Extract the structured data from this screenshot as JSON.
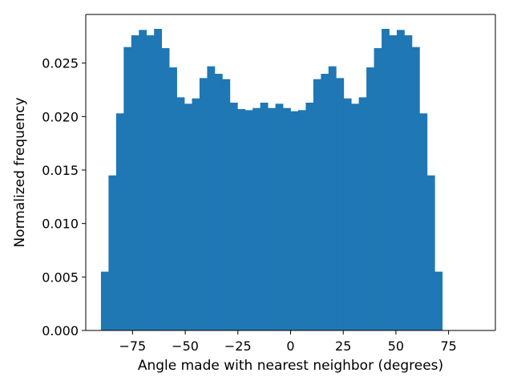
{
  "chart_data": {
    "type": "bar",
    "subtype": "histogram",
    "title": "",
    "xlabel": "Angle made with nearest neighbor (degrees)",
    "ylabel": "Normalized frequency",
    "xlim": [
      -97.2,
      97.2
    ],
    "ylim": [
      0,
      0.02955
    ],
    "bin_width": 3.6,
    "x_ticks": [
      -75,
      -50,
      -25,
      0,
      25,
      50,
      75
    ],
    "x_tick_labels": [
      "−75",
      "−50",
      "−25",
      "0",
      "25",
      "50",
      "75"
    ],
    "y_ticks": [
      0,
      0.005,
      0.01,
      0.015,
      0.02,
      0.025
    ],
    "y_tick_labels": [
      "0.000",
      "0.005",
      "0.010",
      "0.015",
      "0.020",
      "0.025"
    ],
    "grid": false,
    "legend": "none",
    "bar_color": "#1f77b4",
    "bins": [
      {
        "x0": -90.0,
        "x1": -86.4,
        "y": 0.0055
      },
      {
        "x0": -86.4,
        "x1": -82.8,
        "y": 0.0145
      },
      {
        "x0": -82.8,
        "x1": -79.2,
        "y": 0.0203
      },
      {
        "x0": -79.2,
        "x1": -75.6,
        "y": 0.0265
      },
      {
        "x0": -75.6,
        "x1": -72.0,
        "y": 0.0276
      },
      {
        "x0": -72.0,
        "x1": -68.4,
        "y": 0.0281
      },
      {
        "x0": -68.4,
        "x1": -64.8,
        "y": 0.0276
      },
      {
        "x0": -64.8,
        "x1": -61.2,
        "y": 0.0282
      },
      {
        "x0": -61.2,
        "x1": -57.6,
        "y": 0.0264
      },
      {
        "x0": -57.6,
        "x1": -54.0,
        "y": 0.0246
      },
      {
        "x0": -54.0,
        "x1": -50.4,
        "y": 0.0218
      },
      {
        "x0": -50.4,
        "x1": -46.8,
        "y": 0.0212
      },
      {
        "x0": -46.8,
        "x1": -43.2,
        "y": 0.0217
      },
      {
        "x0": -43.2,
        "x1": -39.6,
        "y": 0.0236
      },
      {
        "x0": -39.6,
        "x1": -36.0,
        "y": 0.0247
      },
      {
        "x0": -36.0,
        "x1": -32.4,
        "y": 0.024
      },
      {
        "x0": -32.4,
        "x1": -28.8,
        "y": 0.0235
      },
      {
        "x0": -28.8,
        "x1": -25.2,
        "y": 0.0213
      },
      {
        "x0": -25.2,
        "x1": -21.6,
        "y": 0.0207
      },
      {
        "x0": -21.6,
        "x1": -18.0,
        "y": 0.0206
      },
      {
        "x0": -18.0,
        "x1": -14.4,
        "y": 0.0208
      },
      {
        "x0": -14.4,
        "x1": -10.8,
        "y": 0.0213
      },
      {
        "x0": -10.8,
        "x1": -7.2,
        "y": 0.0208
      },
      {
        "x0": -7.2,
        "x1": -3.6,
        "y": 0.0212
      },
      {
        "x0": -3.6,
        "x1": 0.0,
        "y": 0.0208
      },
      {
        "x0": 0.0,
        "x1": 3.6,
        "y": 0.0205
      },
      {
        "x0": 3.6,
        "x1": 7.2,
        "y": 0.0206
      },
      {
        "x0": 7.2,
        "x1": 10.8,
        "y": 0.0213
      },
      {
        "x0": 10.8,
        "x1": 14.4,
        "y": 0.0235
      },
      {
        "x0": 14.4,
        "x1": 18.0,
        "y": 0.024
      },
      {
        "x0": 18.0,
        "x1": 21.6,
        "y": 0.0247
      },
      {
        "x0": 21.6,
        "x1": 25.2,
        "y": 0.0236
      },
      {
        "x0": 25.2,
        "x1": 28.8,
        "y": 0.0217
      },
      {
        "x0": 28.8,
        "x1": 32.4,
        "y": 0.0212
      },
      {
        "x0": 32.4,
        "x1": 36.0,
        "y": 0.0218
      },
      {
        "x0": 36.0,
        "x1": 39.6,
        "y": 0.0246
      },
      {
        "x0": 39.6,
        "x1": 43.2,
        "y": 0.0264
      },
      {
        "x0": 43.2,
        "x1": 46.8,
        "y": 0.0282
      },
      {
        "x0": 46.8,
        "x1": 50.4,
        "y": 0.0276
      },
      {
        "x0": 50.4,
        "x1": 54.0,
        "y": 0.0281
      },
      {
        "x0": 54.0,
        "x1": 57.6,
        "y": 0.0276
      },
      {
        "x0": 57.6,
        "x1": 61.2,
        "y": 0.0265
      },
      {
        "x0": 61.2,
        "x1": 64.8,
        "y": 0.0203
      },
      {
        "x0": 64.8,
        "x1": 68.4,
        "y": 0.0145
      },
      {
        "x0": 68.4,
        "x1": 72.0,
        "y": 0.0055
      }
    ]
  }
}
